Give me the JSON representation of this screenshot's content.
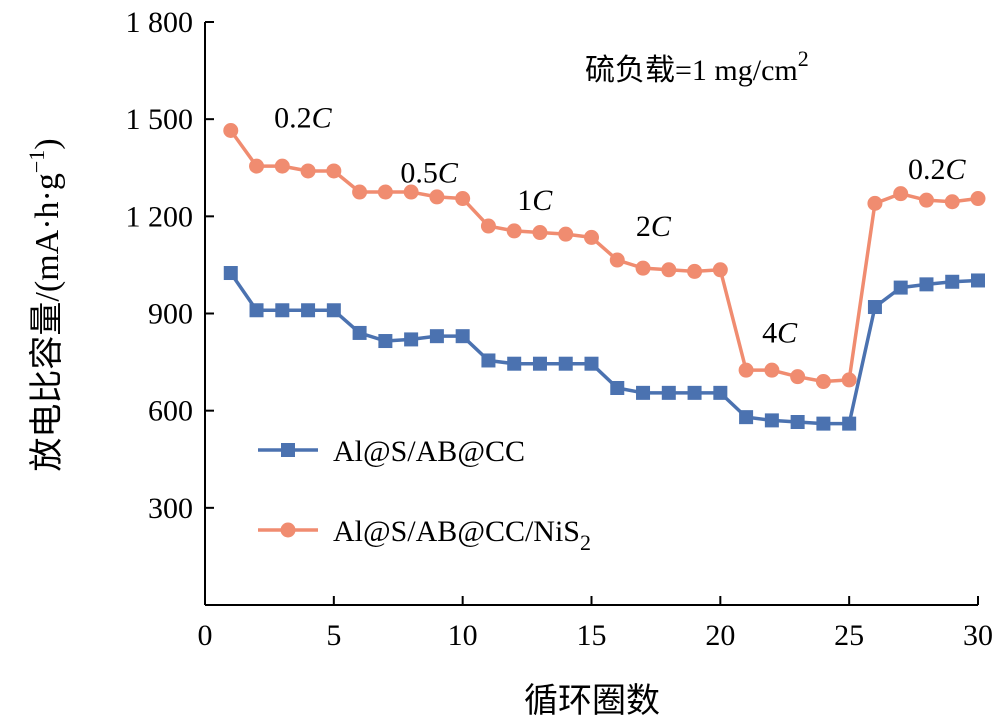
{
  "chart_data": {
    "type": "line",
    "xlabel": "循环圈数",
    "ylabel_main": "放电比容量/(mA·h·g",
    "ylabel_sup": "−1",
    "ylabel_end": ")",
    "xlim": [
      0,
      30
    ],
    "ylim": [
      0,
      1800
    ],
    "xticks": [
      0,
      5,
      10,
      15,
      20,
      25,
      30
    ],
    "yticks": [
      {
        "value": 300,
        "label": "300"
      },
      {
        "value": 600,
        "label": "600"
      },
      {
        "value": 900,
        "label": "900"
      },
      {
        "value": 1200,
        "label": "1 200"
      },
      {
        "value": 1500,
        "label": "1 500"
      },
      {
        "value": 1800,
        "label": "1 800"
      }
    ],
    "grid": false,
    "legend_position": "lower-left",
    "note": {
      "text": "硫负载=1 mg/cm",
      "sup": "2"
    },
    "rate_labels": [
      {
        "num": "0.2",
        "unit": "C",
        "x": 3.8,
        "y": 1475
      },
      {
        "num": "0.5",
        "unit": "C",
        "x": 8.7,
        "y": 1305
      },
      {
        "num": "1",
        "unit": "C",
        "x": 12.8,
        "y": 1220
      },
      {
        "num": "2",
        "unit": "C",
        "x": 17.4,
        "y": 1140
      },
      {
        "num": "4",
        "unit": "C",
        "x": 22.3,
        "y": 810
      },
      {
        "num": "0.2",
        "unit": "C",
        "x": 28.4,
        "y": 1315
      }
    ],
    "series": [
      {
        "name": "Al@S/AB@CC",
        "marker": "square",
        "color": "#4b72b0",
        "x": [
          1,
          2,
          3,
          4,
          5,
          6,
          7,
          8,
          9,
          10,
          11,
          12,
          13,
          14,
          15,
          16,
          17,
          18,
          19,
          20,
          21,
          22,
          23,
          24,
          25,
          26,
          27,
          28,
          29,
          30
        ],
        "y": [
          1025,
          910,
          910,
          910,
          910,
          840,
          815,
          820,
          830,
          830,
          755,
          745,
          745,
          745,
          745,
          670,
          655,
          655,
          655,
          655,
          580,
          570,
          565,
          560,
          560,
          920,
          980,
          990,
          998,
          1002
        ]
      },
      {
        "name": "Al@S/AB@CC/NiS",
        "name_sub": "2",
        "marker": "circle",
        "color": "#f08c70",
        "x": [
          1,
          2,
          3,
          4,
          5,
          6,
          7,
          8,
          9,
          10,
          11,
          12,
          13,
          14,
          15,
          16,
          17,
          18,
          19,
          20,
          21,
          22,
          23,
          24,
          25,
          26,
          27,
          28,
          29,
          30
        ],
        "y": [
          1465,
          1355,
          1355,
          1340,
          1340,
          1275,
          1275,
          1275,
          1260,
          1255,
          1170,
          1155,
          1150,
          1145,
          1135,
          1065,
          1040,
          1035,
          1030,
          1035,
          725,
          725,
          705,
          690,
          695,
          1240,
          1270,
          1250,
          1245,
          1255
        ]
      }
    ]
  }
}
